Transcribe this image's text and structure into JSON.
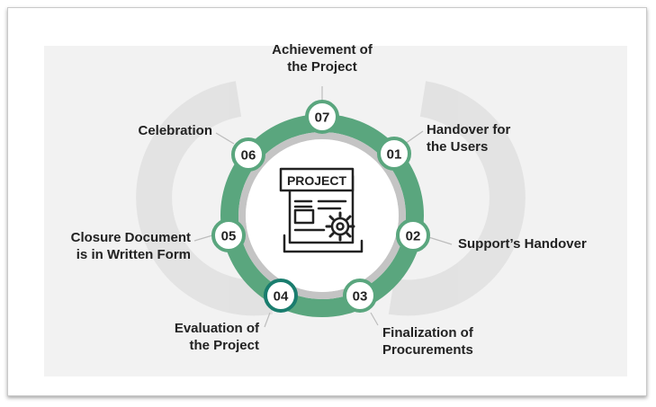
{
  "center": {
    "title": "PROJECT",
    "icon": "project-document-gear-icon"
  },
  "colors": {
    "ring": "#5aa67e",
    "ring_inner": "#c4c4c4",
    "node_border": "#5aa67e",
    "node_active_border": "#1a7d6e",
    "panel": "#f2f2f2"
  },
  "steps": [
    {
      "num": "01",
      "label_line1": "Handover for",
      "label_line2": "the Users"
    },
    {
      "num": "02",
      "label_line1": "Support’s Handover",
      "label_line2": ""
    },
    {
      "num": "03",
      "label_line1": "Finalization of",
      "label_line2": "Procurements"
    },
    {
      "num": "04",
      "label_line1": "Evaluation of",
      "label_line2": "the Project",
      "active": true
    },
    {
      "num": "05",
      "label_line1": "Closure Document",
      "label_line2": "is in Written Form"
    },
    {
      "num": "06",
      "label_line1": "Celebration",
      "label_line2": ""
    },
    {
      "num": "07",
      "label_line1": "Achievement of",
      "label_line2": "the Project"
    }
  ]
}
